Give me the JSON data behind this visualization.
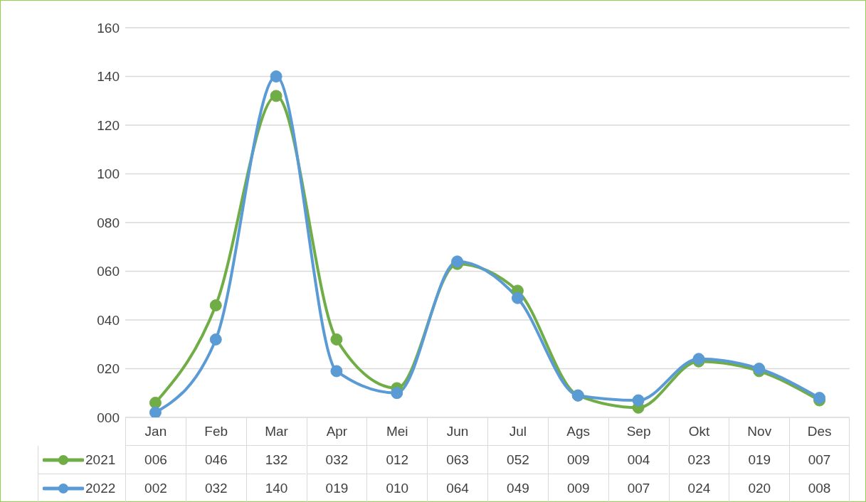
{
  "chart_data": {
    "type": "line",
    "categories": [
      "Jan",
      "Feb",
      "Mar",
      "Apr",
      "Mei",
      "Jun",
      "Jul",
      "Ags",
      "Sep",
      "Okt",
      "Nov",
      "Des"
    ],
    "series": [
      {
        "name": "2021",
        "color": "#70ad47",
        "values": [
          6,
          46,
          132,
          32,
          12,
          63,
          52,
          9,
          4,
          23,
          19,
          7
        ],
        "value_labels": [
          "006",
          "046",
          "132",
          "032",
          "012",
          "063",
          "052",
          "009",
          "004",
          "023",
          "019",
          "007"
        ]
      },
      {
        "name": "2022",
        "color": "#5b9bd5",
        "values": [
          2,
          32,
          140,
          19,
          10,
          64,
          49,
          9,
          7,
          24,
          20,
          8
        ],
        "value_labels": [
          "002",
          "032",
          "140",
          "019",
          "010",
          "064",
          "049",
          "009",
          "007",
          "024",
          "020",
          "008"
        ]
      }
    ],
    "ylim": [
      0,
      160
    ],
    "yticks": [
      {
        "value": 0,
        "label": "000"
      },
      {
        "value": 20,
        "label": "020"
      },
      {
        "value": 40,
        "label": "040"
      },
      {
        "value": 60,
        "label": "060"
      },
      {
        "value": 80,
        "label": "080"
      },
      {
        "value": 100,
        "label": "100"
      },
      {
        "value": 120,
        "label": "120"
      },
      {
        "value": 140,
        "label": "140"
      },
      {
        "value": 160,
        "label": "160"
      }
    ],
    "grid": "y",
    "legend": "bottom",
    "marker": "circle"
  }
}
